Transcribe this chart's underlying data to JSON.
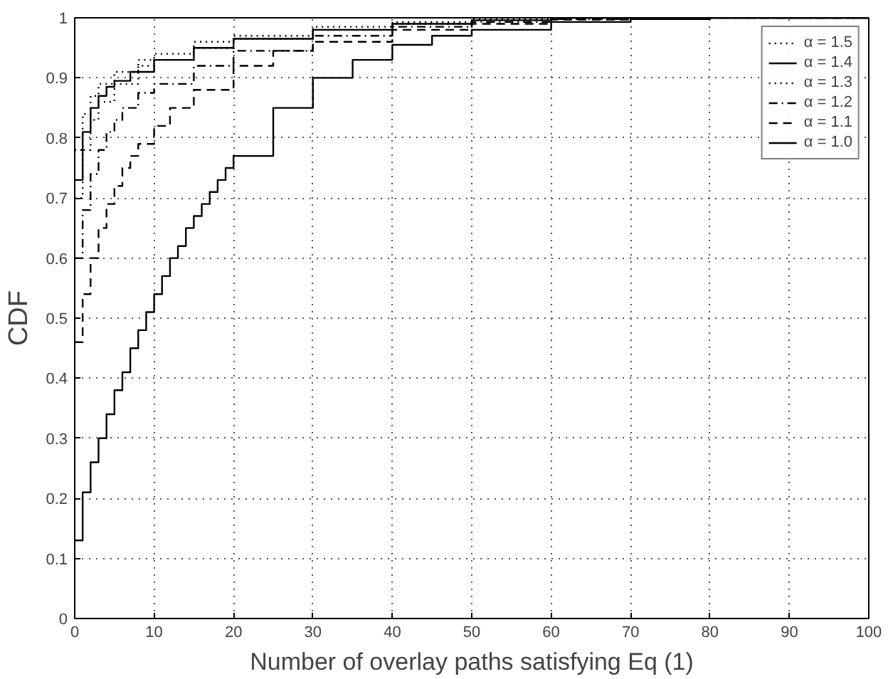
{
  "chart_data": {
    "type": "step",
    "xlabel": "Number of overlay paths satisfying Eq (1)",
    "ylabel": "CDF",
    "xlim": [
      0,
      100
    ],
    "xticks": [
      0,
      10,
      20,
      30,
      40,
      50,
      60,
      70,
      80,
      90,
      100
    ],
    "ylim": [
      0,
      1
    ],
    "yticks": [
      0,
      0.1,
      0.2,
      0.3,
      0.4,
      0.5,
      0.6,
      0.7,
      0.8,
      0.9,
      1
    ],
    "grid": true,
    "legend": "top right",
    "marker": "none",
    "series": [
      {
        "name": "α = 1.5",
        "color": "#000000",
        "line_style": "dotted",
        "x": [
          0,
          1,
          2,
          3,
          5,
          8,
          10,
          15,
          20,
          30,
          40,
          50,
          60,
          100
        ],
        "values": [
          0.78,
          0.84,
          0.87,
          0.89,
          0.91,
          0.93,
          0.94,
          0.96,
          0.97,
          0.985,
          0.993,
          0.998,
          1,
          1
        ]
      },
      {
        "name": "α = 1.4",
        "color": "#000000",
        "line_style": "solid",
        "x": [
          0,
          1,
          2,
          3,
          4,
          5,
          7,
          10,
          15,
          20,
          30,
          40,
          50,
          60,
          100
        ],
        "values": [
          0.73,
          0.81,
          0.85,
          0.87,
          0.885,
          0.895,
          0.91,
          0.93,
          0.95,
          0.965,
          0.98,
          0.99,
          0.996,
          1,
          1
        ]
      },
      {
        "name": "α = 1.3",
        "color": "#000000",
        "line_style": "dotted",
        "x": [
          0,
          1,
          2,
          3,
          5,
          8,
          10,
          15,
          20,
          30,
          40,
          50,
          60,
          100
        ],
        "values": [
          0.7,
          0.78,
          0.83,
          0.86,
          0.89,
          0.92,
          0.93,
          0.95,
          0.965,
          0.98,
          0.99,
          0.996,
          1,
          1
        ]
      },
      {
        "name": "α = 1.2",
        "color": "#000000",
        "line_style": "dashdot",
        "x": [
          0,
          1,
          2,
          3,
          4,
          5,
          6,
          8,
          10,
          15,
          20,
          30,
          40,
          50,
          60,
          70,
          100
        ],
        "values": [
          0.6,
          0.68,
          0.74,
          0.78,
          0.81,
          0.83,
          0.85,
          0.875,
          0.89,
          0.92,
          0.945,
          0.97,
          0.985,
          0.993,
          0.998,
          1,
          1
        ]
      },
      {
        "name": "α = 1.1",
        "color": "#000000",
        "line_style": "dashed",
        "x": [
          0,
          1,
          2,
          3,
          4,
          5,
          6,
          7,
          8,
          10,
          12,
          15,
          20,
          25,
          30,
          40,
          50,
          60,
          70,
          100
        ],
        "values": [
          0.46,
          0.54,
          0.6,
          0.65,
          0.69,
          0.72,
          0.75,
          0.77,
          0.79,
          0.82,
          0.85,
          0.88,
          0.92,
          0.945,
          0.96,
          0.98,
          0.99,
          0.997,
          1,
          1
        ]
      },
      {
        "name": "α = 1.0",
        "color": "#000000",
        "line_style": "solid",
        "x": [
          0,
          1,
          2,
          3,
          4,
          5,
          6,
          7,
          8,
          9,
          10,
          11,
          12,
          13,
          14,
          15,
          16,
          17,
          18,
          19,
          20,
          25,
          30,
          35,
          40,
          45,
          50,
          60,
          70,
          80,
          100
        ],
        "values": [
          0.13,
          0.21,
          0.26,
          0.3,
          0.34,
          0.38,
          0.41,
          0.45,
          0.48,
          0.51,
          0.54,
          0.57,
          0.6,
          0.62,
          0.65,
          0.67,
          0.69,
          0.71,
          0.73,
          0.75,
          0.77,
          0.85,
          0.9,
          0.93,
          0.955,
          0.97,
          0.98,
          0.993,
          0.998,
          1,
          1
        ]
      }
    ]
  }
}
